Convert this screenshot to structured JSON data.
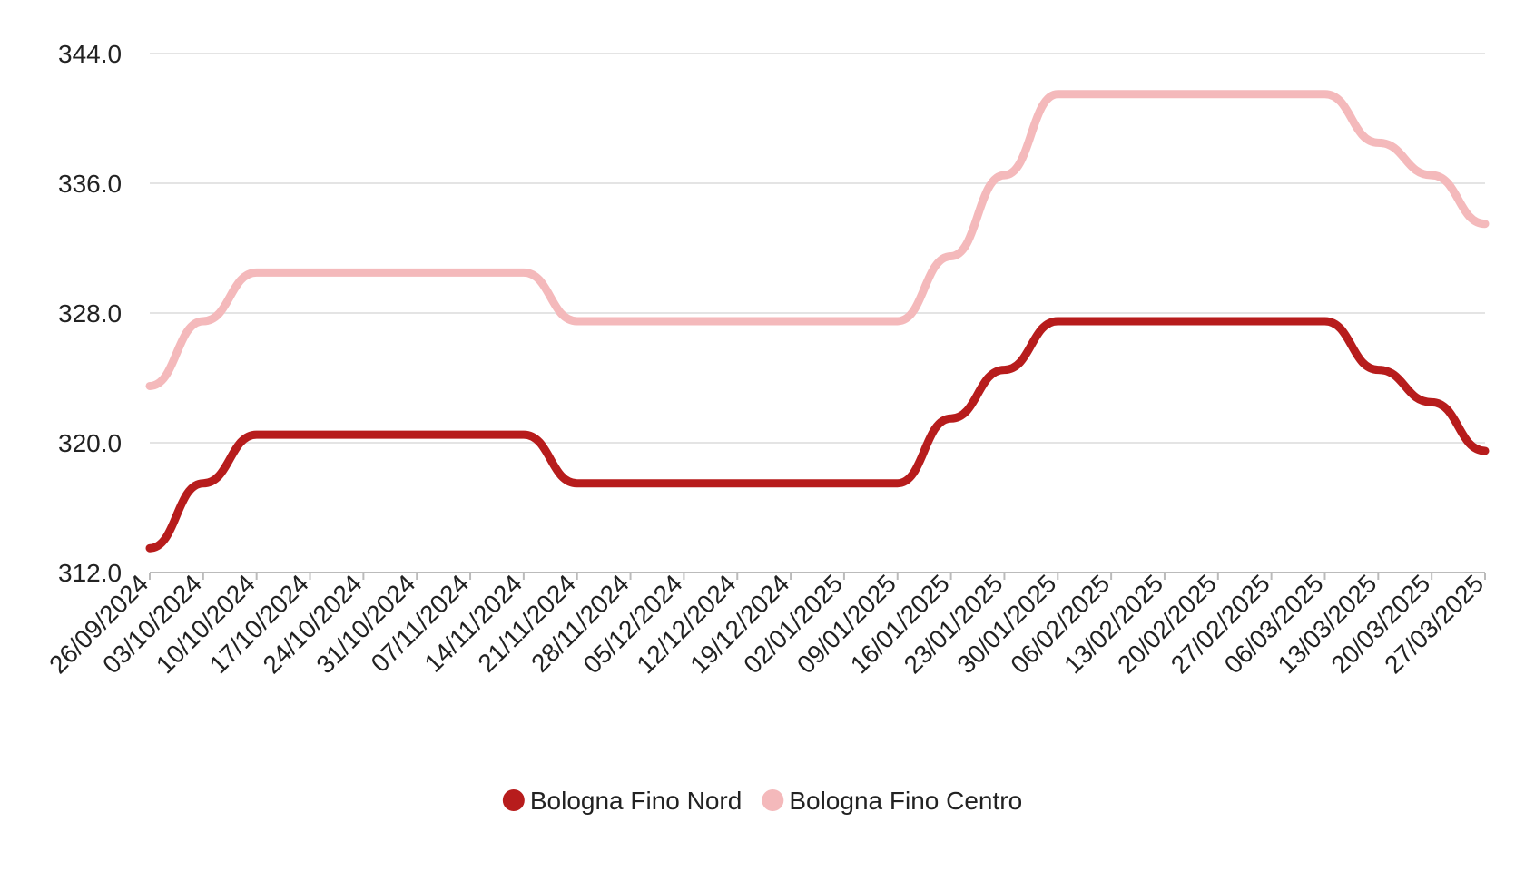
{
  "chart_data": {
    "type": "line",
    "categories": [
      "26/09/2024",
      "03/10/2024",
      "10/10/2024",
      "17/10/2024",
      "24/10/2024",
      "31/10/2024",
      "07/11/2024",
      "14/11/2024",
      "21/11/2024",
      "28/11/2024",
      "05/12/2024",
      "12/12/2024",
      "19/12/2024",
      "02/01/2025",
      "09/01/2025",
      "16/01/2025",
      "23/01/2025",
      "30/01/2025",
      "06/02/2025",
      "13/02/2025",
      "20/02/2025",
      "27/02/2025",
      "06/03/2025",
      "13/03/2025",
      "20/03/2025",
      "27/03/2025"
    ],
    "series": [
      {
        "name": "Bologna Fino Nord",
        "color": "#b71c1c",
        "values": [
          313.5,
          317.5,
          320.5,
          320.5,
          320.5,
          320.5,
          320.5,
          320.5,
          317.5,
          317.5,
          317.5,
          317.5,
          317.5,
          317.5,
          317.5,
          321.5,
          324.5,
          327.5,
          327.5,
          327.5,
          327.5,
          327.5,
          327.5,
          324.5,
          322.5,
          319.5
        ]
      },
      {
        "name": "Bologna Fino Centro",
        "color": "#f4b9bb",
        "values": [
          323.5,
          327.5,
          330.5,
          330.5,
          330.5,
          330.5,
          330.5,
          330.5,
          327.5,
          327.5,
          327.5,
          327.5,
          327.5,
          327.5,
          327.5,
          331.5,
          336.5,
          341.5,
          341.5,
          341.5,
          341.5,
          341.5,
          341.5,
          338.5,
          336.5,
          333.5
        ]
      }
    ],
    "ylim": [
      312,
      344
    ],
    "yticks": [
      {
        "value": 312,
        "label": "312.0"
      },
      {
        "value": 320,
        "label": "320.0"
      },
      {
        "value": 328,
        "label": "328.0"
      },
      {
        "value": 336,
        "label": "336.0"
      },
      {
        "value": 344,
        "label": "344.0"
      }
    ],
    "grid": true,
    "legend": "bottom"
  }
}
